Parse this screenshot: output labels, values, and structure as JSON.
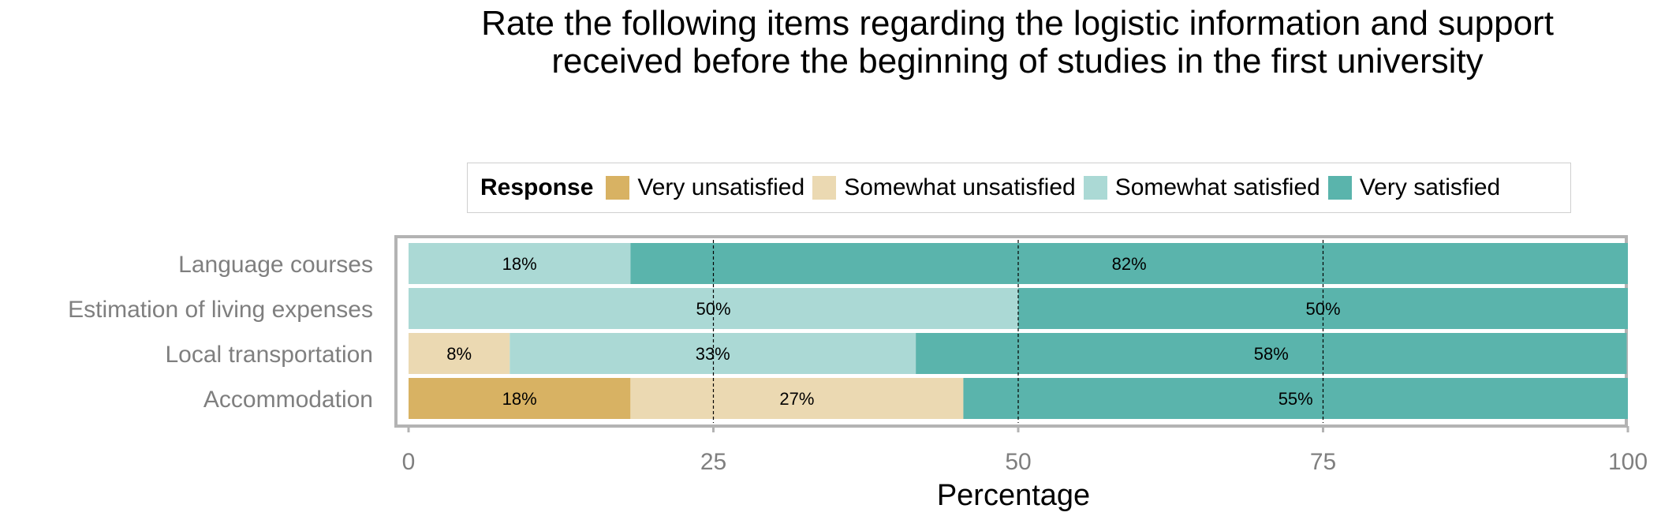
{
  "chart_data": {
    "type": "bar",
    "orientation": "horizontal",
    "stacked": true,
    "title": "Rate the following items regarding the logistic information and support received before the beginning of studies in the first university",
    "xlabel": "Percentage",
    "ylabel": "",
    "xlim": [
      0,
      100
    ],
    "xticks": [
      "0",
      "25",
      "50",
      "75",
      "100"
    ],
    "legend": {
      "title": "Response",
      "position": "top"
    },
    "categories": [
      "Language courses",
      "Estimation of living expenses",
      "Local transportation",
      "Accommodation"
    ],
    "series": [
      {
        "name": "Very unsatisfied",
        "color": "#d8b263",
        "values": [
          0,
          0,
          0,
          18.2
        ],
        "labels": [
          "",
          "",
          "",
          "18%"
        ]
      },
      {
        "name": "Somewhat unsatisfied",
        "color": "#ebd9b2",
        "values": [
          0,
          0,
          8.3,
          27.3
        ],
        "labels": [
          "",
          "",
          "8%",
          "27%"
        ]
      },
      {
        "name": "Somewhat satisfied",
        "color": "#abd9d5",
        "values": [
          18.2,
          50,
          33.3,
          0
        ],
        "labels": [
          "18%",
          "50%",
          "33%",
          ""
        ]
      },
      {
        "name": "Very satisfied",
        "color": "#5ab4ac",
        "values": [
          81.8,
          50,
          58.3,
          54.5
        ],
        "labels": [
          "82%",
          "50%",
          "58%",
          "55%"
        ]
      }
    ],
    "grid": true
  }
}
